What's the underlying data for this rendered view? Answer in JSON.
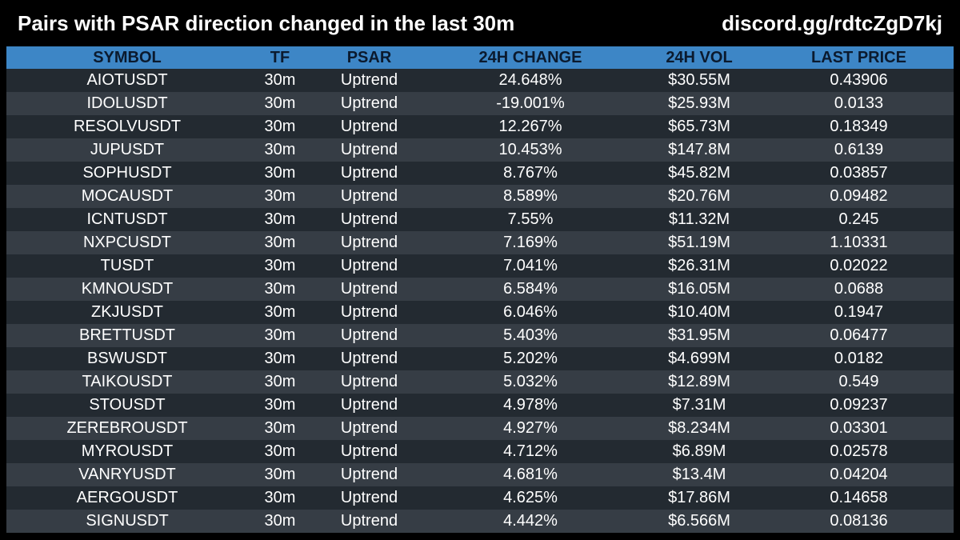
{
  "header": {
    "title": "Pairs with PSAR direction changed in the last 30m",
    "link": "discord.gg/rdtcZgD7kj"
  },
  "table": {
    "columns": [
      "SYMBOL",
      "TF",
      "PSAR",
      "24H CHANGE",
      "24H VOL",
      "LAST PRICE"
    ],
    "rows": [
      [
        "AIOTUSDT",
        "30m",
        "Uptrend",
        "24.648%",
        "$30.55M",
        "0.43906"
      ],
      [
        "IDOLUSDT",
        "30m",
        "Uptrend",
        "-19.001%",
        "$25.93M",
        "0.0133"
      ],
      [
        "RESOLVUSDT",
        "30m",
        "Uptrend",
        "12.267%",
        "$65.73M",
        "0.18349"
      ],
      [
        "JUPUSDT",
        "30m",
        "Uptrend",
        "10.453%",
        "$147.8M",
        "0.6139"
      ],
      [
        "SOPHUSDT",
        "30m",
        "Uptrend",
        "8.767%",
        "$45.82M",
        "0.03857"
      ],
      [
        "MOCAUSDT",
        "30m",
        "Uptrend",
        "8.589%",
        "$20.76M",
        "0.09482"
      ],
      [
        "ICNTUSDT",
        "30m",
        "Uptrend",
        "7.55%",
        "$11.32M",
        "0.245"
      ],
      [
        "NXPCUSDT",
        "30m",
        "Uptrend",
        "7.169%",
        "$51.19M",
        "1.10331"
      ],
      [
        "TUSDT",
        "30m",
        "Uptrend",
        "7.041%",
        "$26.31M",
        "0.02022"
      ],
      [
        "KMNOUSDT",
        "30m",
        "Uptrend",
        "6.584%",
        "$16.05M",
        "0.0688"
      ],
      [
        "ZKJUSDT",
        "30m",
        "Uptrend",
        "6.046%",
        "$10.40M",
        "0.1947"
      ],
      [
        "BRETTUSDT",
        "30m",
        "Uptrend",
        "5.403%",
        "$31.95M",
        "0.06477"
      ],
      [
        "BSWUSDT",
        "30m",
        "Uptrend",
        "5.202%",
        "$4.699M",
        "0.0182"
      ],
      [
        "TAIKOUSDT",
        "30m",
        "Uptrend",
        "5.032%",
        "$12.89M",
        "0.549"
      ],
      [
        "STOUSDT",
        "30m",
        "Uptrend",
        "4.978%",
        "$7.31M",
        "0.09237"
      ],
      [
        "ZEREBROUSDT",
        "30m",
        "Uptrend",
        "4.927%",
        "$8.234M",
        "0.03301"
      ],
      [
        "MYROUSDT",
        "30m",
        "Uptrend",
        "4.712%",
        "$6.89M",
        "0.02578"
      ],
      [
        "VANRYUSDT",
        "30m",
        "Uptrend",
        "4.681%",
        "$13.4M",
        "0.04204"
      ],
      [
        "AERGOUSDT",
        "30m",
        "Uptrend",
        "4.625%",
        "$17.86M",
        "0.14658"
      ],
      [
        "SIGNUSDT",
        "30m",
        "Uptrend",
        "4.442%",
        "$6.566M",
        "0.08136"
      ]
    ]
  },
  "colors": {
    "background": "#000000",
    "header_row": "#3d86c6",
    "row_dark": "#232a31",
    "row_light": "#363d45",
    "text": "#ffffff"
  }
}
